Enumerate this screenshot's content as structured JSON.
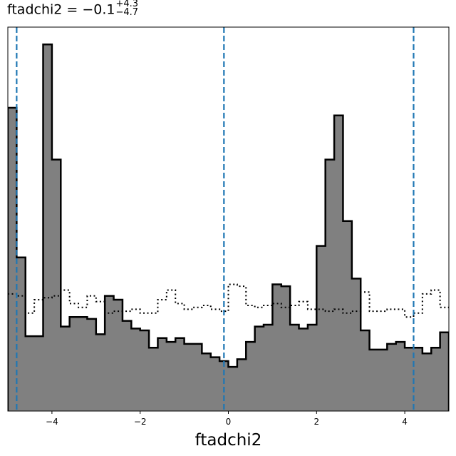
{
  "chart_data": {
    "type": "histogram",
    "title": {
      "param": "ftadchi2",
      "median": "−0.1",
      "plus": "+4.3",
      "minus": "−4.7"
    },
    "xlabel": "ftadchi2",
    "ylabel": "",
    "xlim": [
      -5.0,
      5.0
    ],
    "ylim": [
      0,
      100
    ],
    "yticks_visible": false,
    "xticks": [
      -4,
      -2,
      0,
      2,
      4
    ],
    "xtick_labels": [
      "−4",
      "−2",
      "0",
      "2",
      "4"
    ],
    "bin_edges_start": -5.0,
    "bin_width": 0.2,
    "posterior": {
      "name": "posterior",
      "style": "filled gray with black solid edge",
      "fill": "#808080",
      "edge": "#000000",
      "values": [
        79,
        40,
        19.5,
        19.5,
        95.5,
        65.5,
        22,
        24.5,
        24.5,
        24,
        20,
        30,
        29,
        23.5,
        21.5,
        21,
        16.5,
        19,
        18,
        19,
        17.5,
        17.5,
        15,
        14,
        13,
        11.5,
        13.5,
        18,
        22,
        22.5,
        33,
        32.5,
        22.5,
        21.5,
        22.5,
        43,
        65.5,
        77,
        49.5,
        34.5,
        21,
        16,
        16,
        17.5,
        18,
        16.5,
        16.5,
        15,
        16.5,
        20.5
      ]
    },
    "prior": {
      "name": "prior",
      "style": "black dotted step",
      "color": "#000000",
      "values": [
        30.5,
        30,
        25.5,
        29,
        29.5,
        30,
        31.5,
        28,
        27,
        30,
        28.5,
        25.5,
        26,
        26,
        26.5,
        25.5,
        25.5,
        29,
        31.5,
        28,
        26.5,
        27,
        27.5,
        26.5,
        26,
        33,
        32.5,
        27.5,
        27,
        27.5,
        28,
        27,
        27.5,
        28.5,
        26.5,
        26.5,
        26,
        26.5,
        25.5,
        26,
        31,
        26,
        26,
        26.5,
        26.5,
        24.5,
        25.5,
        30.5,
        31.5,
        27
      ]
    },
    "quantile_lines": {
      "color": "#1f77b4",
      "style": "dashed",
      "values": [
        -4.8,
        -0.1,
        4.2
      ]
    },
    "grid": false,
    "legend": "none"
  }
}
